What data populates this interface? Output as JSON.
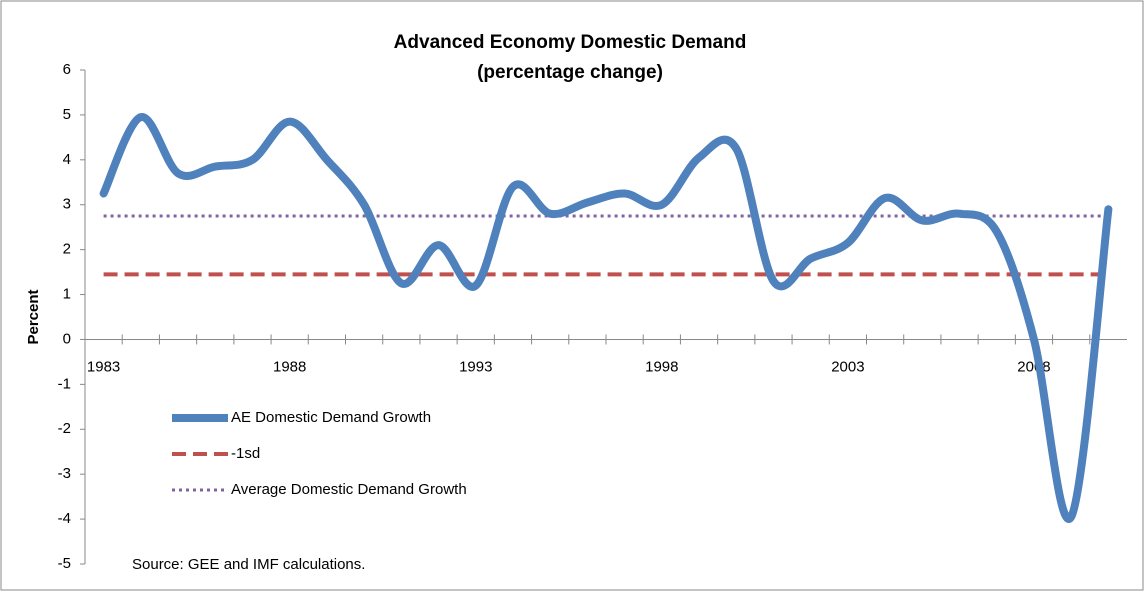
{
  "chart_data": {
    "type": "line",
    "title": "Advanced Economy Domestic Demand",
    "subtitle": "(percentage change)",
    "y_label": "Percent",
    "annotation": "Source: GEE and IMF calculations.",
    "categories": [
      "1983",
      null,
      null,
      null,
      null,
      "1988",
      null,
      null,
      null,
      null,
      "1993",
      null,
      null,
      null,
      null,
      "1998",
      null,
      null,
      null,
      null,
      "2003",
      null,
      null,
      null,
      null,
      "2008",
      null,
      null
    ],
    "series": [
      {
        "name": "AE Domestic Demand Growth",
        "color": "#4f81bd",
        "style": "solid",
        "values": [
          3.25,
          4.95,
          3.7,
          3.85,
          4.0,
          4.85,
          4.0,
          3.0,
          1.25,
          2.1,
          1.2,
          3.4,
          2.8,
          3.05,
          3.25,
          3.0,
          4.05,
          4.25,
          1.3,
          1.8,
          2.15,
          3.15,
          2.65,
          2.8,
          2.4,
          0.0,
          -3.95,
          2.9
        ]
      },
      {
        "name": "-1sd",
        "color": "#c0504d",
        "style": "dashed",
        "values": [
          1.45,
          1.45,
          1.45,
          1.45,
          1.45,
          1.45,
          1.45,
          1.45,
          1.45,
          1.45,
          1.45,
          1.45,
          1.45,
          1.45,
          1.45,
          1.45,
          1.45,
          1.45,
          1.45,
          1.45,
          1.45,
          1.45,
          1.45,
          1.45,
          1.45,
          1.45,
          1.45,
          1.45
        ]
      },
      {
        "name": "Average Domestic Demand Growth",
        "color": "#8064a2",
        "style": "dotted",
        "values": [
          2.75,
          2.75,
          2.75,
          2.75,
          2.75,
          2.75,
          2.75,
          2.75,
          2.75,
          2.75,
          2.75,
          2.75,
          2.75,
          2.75,
          2.75,
          2.75,
          2.75,
          2.75,
          2.75,
          2.75,
          2.75,
          2.75,
          2.75,
          2.75,
          2.75,
          2.75,
          2.75,
          2.75
        ]
      }
    ],
    "ylim": [
      -5,
      6
    ],
    "yticks": [
      -5,
      -4,
      -3,
      -2,
      -1,
      0,
      1,
      2,
      3,
      4,
      5,
      6
    ],
    "grid": false,
    "smooth": true
  }
}
